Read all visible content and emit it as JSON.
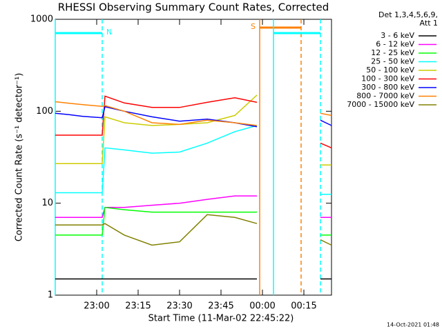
{
  "chart_data": {
    "type": "line",
    "title": "RHESSI Observing Summary Count Rates, Corrected",
    "x_label": "Start Time (11-Mar-02 22:45:22)",
    "y_label": "Corrected Count Rate (s⁻¹ detector⁻¹)",
    "legend_title": [
      "Det 1,3,4,5,6,9,",
      "Att 1"
    ],
    "timestamp": "14-Oct-2021 01:48",
    "log_y": true,
    "legend": "outside-right",
    "x": [
      "22:45",
      "22:50",
      "22:55",
      "23:02",
      "23:03",
      "23:10",
      "23:20",
      "23:30",
      "23:40",
      "23:50",
      "23:58",
      "00:10",
      "00:21",
      "00:25"
    ],
    "xlim": [
      "22:45",
      "00:25"
    ],
    "xticks": [
      "23:00",
      "23:15",
      "23:30",
      "23:45",
      "00:00",
      "00:15"
    ],
    "ylim": [
      1,
      1000
    ],
    "yticks": [
      1,
      10,
      100,
      1000
    ],
    "intervals": [
      {
        "label": "N",
        "color": "#00ffff",
        "start": "22:45",
        "end": "23:02",
        "label_pos": "end"
      },
      {
        "label": "S",
        "color": "#ff8000",
        "start": "23:59",
        "end": "00:14",
        "label_pos": "start"
      },
      {
        "color": "#00ffff",
        "start": "00:04",
        "end": "00:21"
      }
    ],
    "series": [
      {
        "name": "3 - 6 keV",
        "color": "#000000",
        "values": [
          1.5,
          1.5,
          1.5,
          1.5,
          1.5,
          1.5,
          1.5,
          1.5,
          1.5,
          1.5,
          1.5,
          null,
          1.5,
          1.5
        ]
      },
      {
        "name": "6 - 12 keV",
        "color": "#ff00ff",
        "values": [
          7,
          7,
          7,
          7,
          9,
          9,
          9.5,
          10,
          11,
          12,
          12,
          null,
          7,
          7
        ]
      },
      {
        "name": "12 - 25 keV",
        "color": "#00ff00",
        "values": [
          4.5,
          4.5,
          4.5,
          4.5,
          9,
          8.5,
          8,
          8,
          8,
          8,
          8,
          null,
          4.5,
          4.5
        ]
      },
      {
        "name": "25 - 50 keV",
        "color": "#00ffff",
        "values": [
          13,
          13,
          13,
          13,
          40,
          38,
          35,
          36,
          45,
          60,
          70,
          null,
          12.5,
          12.5
        ]
      },
      {
        "name": "50 - 100 keV",
        "color": "#cccc00",
        "values": [
          27,
          27,
          27,
          27,
          87,
          75,
          70,
          72,
          75,
          90,
          150,
          null,
          26,
          26
        ]
      },
      {
        "name": "100 - 300 keV",
        "color": "#ff0000",
        "values": [
          55,
          55,
          55,
          55,
          146,
          123,
          110,
          110,
          125,
          140,
          125,
          null,
          45,
          40
        ]
      },
      {
        "name": "300 - 800 keV",
        "color": "#0000ff",
        "values": [
          95,
          92,
          88,
          85,
          112,
          100,
          87,
          78,
          82,
          75,
          68,
          null,
          80,
          70
        ]
      },
      {
        "name": "800 - 7000 keV",
        "color": "#ff8000",
        "values": [
          127,
          122,
          118,
          113,
          115,
          100,
          75,
          72,
          80,
          75,
          70,
          null,
          95,
          90
        ]
      },
      {
        "name": "7000 - 15000 keV",
        "color": "#808000",
        "values": [
          5.8,
          5.8,
          5.8,
          5.8,
          6,
          4.5,
          3.5,
          3.8,
          7.5,
          7,
          6,
          null,
          4,
          3.5
        ]
      }
    ]
  }
}
